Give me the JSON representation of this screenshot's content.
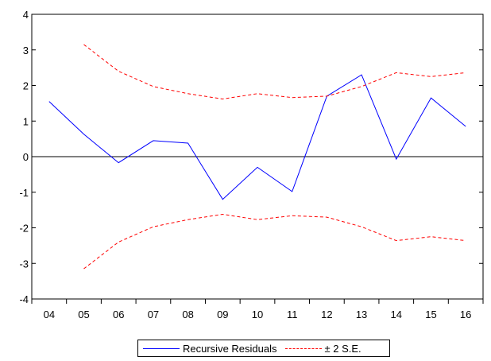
{
  "chart_data": {
    "type": "line",
    "categories": [
      "04",
      "05",
      "06",
      "07",
      "08",
      "09",
      "10",
      "11",
      "12",
      "13",
      "14",
      "15",
      "16"
    ],
    "series": [
      {
        "name": "Recursive Residuals",
        "color": "#0000ff",
        "style": "solid",
        "values": [
          1.55,
          0.63,
          -0.17,
          0.45,
          0.38,
          -1.2,
          -0.3,
          -0.98,
          1.7,
          2.3,
          -0.07,
          1.65,
          0.85
        ]
      },
      {
        "name": "± 2 S.E.",
        "color": "#ff0000",
        "style": "dashed",
        "values": [
          null,
          3.15,
          2.4,
          1.97,
          1.77,
          1.62,
          1.77,
          1.66,
          1.7,
          1.97,
          2.36,
          2.25,
          2.36
        ]
      },
      {
        "name": "",
        "color": "#ff0000",
        "style": "dashed",
        "values": [
          null,
          -3.15,
          -2.4,
          -1.97,
          -1.77,
          -1.62,
          -1.77,
          -1.66,
          -1.7,
          -1.97,
          -2.36,
          -2.25,
          -2.36
        ]
      }
    ],
    "yticks": [
      "4",
      "3",
      "2",
      "1",
      "0",
      "-1",
      "-2",
      "-3",
      "-4"
    ],
    "ylim": [
      -4,
      4
    ],
    "zero_line": true,
    "grid": false,
    "legend_position": "bottom-center",
    "title": "",
    "xlabel": "",
    "ylabel": ""
  }
}
